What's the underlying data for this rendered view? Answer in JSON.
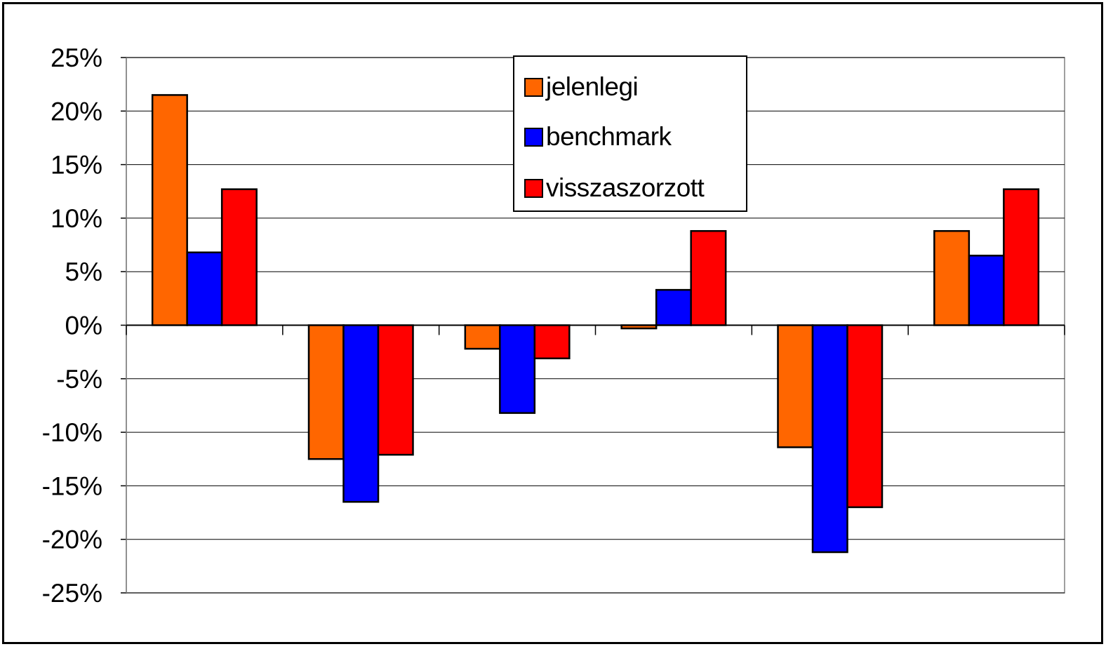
{
  "chart_data": {
    "type": "bar",
    "categories": [
      "",
      "",
      "",
      "",
      "",
      ""
    ],
    "series": [
      {
        "name": "jelenlegi",
        "color": "#FF6600",
        "values": [
          21.5,
          -12.5,
          -2.2,
          -0.3,
          -11.4,
          8.8
        ]
      },
      {
        "name": "benchmark",
        "color": "#0000FF",
        "values": [
          6.8,
          -16.5,
          -8.2,
          3.3,
          -21.2,
          6.5
        ]
      },
      {
        "name": "visszaszorzott",
        "color": "#FF0000",
        "values": [
          12.7,
          -12.1,
          -3.1,
          8.8,
          -17.0,
          12.7
        ]
      }
    ],
    "ylim": [
      -25,
      25
    ],
    "yticks": [
      25,
      20,
      15,
      10,
      5,
      0,
      -5,
      -10,
      -15,
      -20,
      -25
    ],
    "ytick_labels": [
      "25%",
      "20%",
      "15%",
      "10%",
      "5%",
      "0%",
      "-5%",
      "-10%",
      "-15%",
      "-20%",
      "-25%"
    ],
    "grid": true,
    "legend_position": "top-center",
    "title": "",
    "xlabel": "",
    "ylabel": ""
  }
}
